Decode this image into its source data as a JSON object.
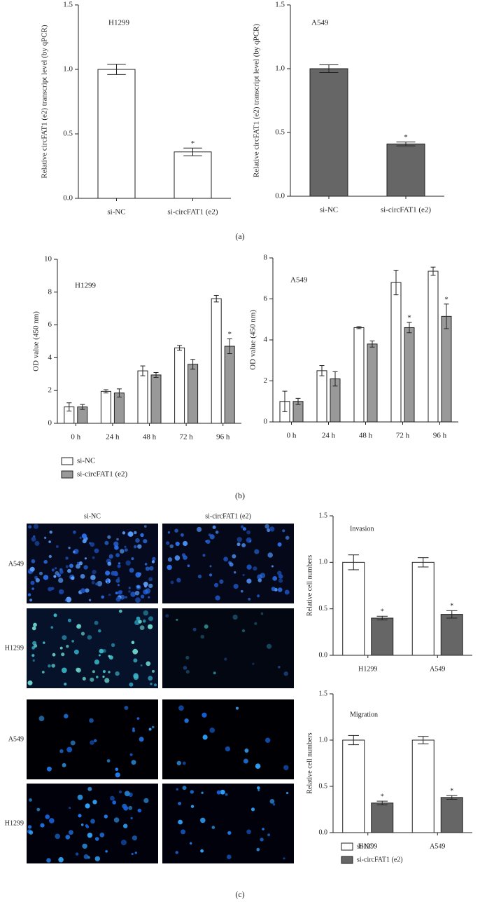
{
  "chart_data": [
    {
      "type": "bar",
      "title": "H1299",
      "ylabel": "Relative circFAT1 (e2) transcript level (by qPCR)",
      "categories": [
        "si-NC",
        "si-circFAT1 (e2)"
      ],
      "series": [
        {
          "color": "#ffffff",
          "values": [
            1.0,
            0.36
          ],
          "errors": [
            0.04,
            0.03
          ]
        }
      ],
      "annotations": [
        {
          "text": "*",
          "category": "si-circFAT1 (e2)"
        }
      ],
      "ylim": [
        0,
        1.5
      ],
      "yticks": [
        {
          "value": 0,
          "label": "0.0"
        },
        {
          "value": 0.5,
          "label": "0.5"
        },
        {
          "value": 1,
          "label": "1.0"
        },
        {
          "value": 1.5,
          "label": "1.5"
        }
      ]
    },
    {
      "type": "bar",
      "title": "A549",
      "ylabel": "Relative circFAT1 (e2) transcript level (by qPCR)",
      "categories": [
        "si-NC",
        "si-circFAT1 (e2)"
      ],
      "series": [
        {
          "color": "#666666",
          "values": [
            1.0,
            0.41
          ],
          "errors": [
            0.03,
            0.015
          ]
        }
      ],
      "annotations": [
        {
          "text": "*",
          "category": "si-circFAT1 (e2)"
        }
      ],
      "ylim": [
        0,
        1.5
      ],
      "yticks": [
        {
          "value": 0,
          "label": "0.0"
        },
        {
          "value": 0.5,
          "label": "0.5"
        },
        {
          "value": 1,
          "label": "1.0"
        },
        {
          "value": 1.5,
          "label": "1.5"
        }
      ]
    },
    {
      "type": "bar",
      "title": "H1299",
      "ylabel": "OD value (450 nm)",
      "categories": [
        "0 h",
        "24 h",
        "48 h",
        "72 h",
        "96 h"
      ],
      "series": [
        {
          "name": "si-NC",
          "color": "#ffffff",
          "values": [
            1.0,
            1.95,
            3.2,
            4.6,
            7.6
          ],
          "errors": [
            0.25,
            0.1,
            0.3,
            0.15,
            0.2
          ]
        },
        {
          "name": "si-circFAT1 (e2)",
          "color": "#999999",
          "values": [
            1.0,
            1.85,
            2.95,
            3.6,
            4.7
          ],
          "errors": [
            0.15,
            0.25,
            0.15,
            0.3,
            0.45
          ]
        }
      ],
      "annotations": [
        {
          "text": "*",
          "category": "96 h",
          "series": "si-circFAT1 (e2)"
        }
      ],
      "legend": "below",
      "ylim": [
        0,
        10
      ],
      "yticks": [
        0,
        2,
        4,
        6,
        8,
        10
      ]
    },
    {
      "type": "bar",
      "title": "A549",
      "ylabel": "OD value (450 nm)",
      "categories": [
        "0 h",
        "24 h",
        "48 h",
        "72 h",
        "96 h"
      ],
      "series": [
        {
          "color": "#ffffff",
          "values": [
            1.0,
            2.5,
            4.6,
            6.8,
            7.35
          ],
          "errors": [
            0.5,
            0.25,
            0.05,
            0.6,
            0.2
          ]
        },
        {
          "color": "#999999",
          "values": [
            1.0,
            2.1,
            3.8,
            4.6,
            5.15
          ],
          "errors": [
            0.15,
            0.35,
            0.15,
            0.25,
            0.6
          ]
        }
      ],
      "annotations": [
        {
          "text": "*",
          "category": "72 h",
          "series": 1
        },
        {
          "text": "*",
          "category": "96 h",
          "series": 1
        }
      ],
      "ylim": [
        0,
        8
      ],
      "yticks": [
        0,
        2,
        4,
        6,
        8
      ]
    },
    {
      "type": "bar",
      "title": "Invasion",
      "ylabel": "Relative cell numbers",
      "categories": [
        "H1299",
        "A549"
      ],
      "series": [
        {
          "color": "#ffffff",
          "values": [
            1.0,
            1.0
          ],
          "errors": [
            0.08,
            0.05
          ]
        },
        {
          "color": "#666666",
          "values": [
            0.4,
            0.44
          ],
          "errors": [
            0.02,
            0.04
          ]
        }
      ],
      "annotations": [
        {
          "text": "*",
          "category": "H1299",
          "series": 1
        },
        {
          "text": "*",
          "category": "A549",
          "series": 1
        }
      ],
      "ylim": [
        0,
        1.5
      ],
      "yticks": [
        {
          "value": 0,
          "label": "0.0"
        },
        {
          "value": 0.5,
          "label": "0.5"
        },
        {
          "value": 1,
          "label": "1.0"
        },
        {
          "value": 1.5,
          "label": "1.5"
        }
      ]
    },
    {
      "type": "bar",
      "title": "Migration",
      "ylabel": "Relative cell numbers",
      "categories": [
        "H1299",
        "A549"
      ],
      "series": [
        {
          "name": "si-NC",
          "color": "#ffffff",
          "values": [
            1.0,
            1.0
          ],
          "errors": [
            0.05,
            0.04
          ]
        },
        {
          "name": "si-circFAT1 (e2)",
          "color": "#666666",
          "values": [
            0.32,
            0.38
          ],
          "errors": [
            0.02,
            0.02
          ]
        }
      ],
      "annotations": [
        {
          "text": "*",
          "category": "H1299",
          "series": 1
        },
        {
          "text": "*",
          "category": "A549",
          "series": 1
        }
      ],
      "legend": "below",
      "ylim": [
        0,
        1.5
      ],
      "yticks": [
        {
          "value": 0,
          "label": "0.0"
        },
        {
          "value": 0.5,
          "label": "0.5"
        },
        {
          "value": 1,
          "label": "1.0"
        },
        {
          "value": 1.5,
          "label": "1.5"
        }
      ]
    }
  ],
  "figure": {
    "panels": [
      "(a)",
      "(b)",
      "(c)"
    ],
    "micrograph_columns": [
      "si-NC",
      "si-circFAT1 (e2)"
    ],
    "micrograph_rows": [
      "A549",
      "H1299",
      "A549",
      "H1299"
    ]
  }
}
